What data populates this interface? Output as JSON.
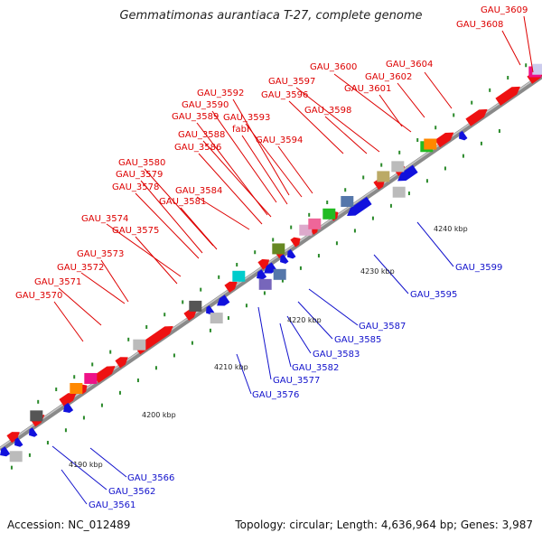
{
  "title": "Gemmatimonas aurantiaca T-27, complete genome",
  "footer": {
    "accession": "Accession: NC_012489",
    "summary": "Topology: circular; Length: 4,636,964 bp; Genes: 3,987"
  },
  "colors": {
    "backbone": "#9a9a9a",
    "forward_cds": "#ee1111",
    "reverse_cds": "#1111dd",
    "forward_label": "#dd0000",
    "reverse_label": "#1111cc",
    "tick": "#2a8a2a"
  },
  "ticks": [
    "4190 kbp",
    "4200 kbp",
    "4210 kbp",
    "4220 kbp",
    "4230 kbp",
    "4240 kbp"
  ],
  "top_labels": [
    "GAU_3609",
    "GAU_3608",
    "GAU_3604",
    "GAU_3600",
    "GAU_3602",
    "GAU_3597",
    "GAU_3601",
    "GAU_3592",
    "GAU_3596",
    "GAU_3590",
    "GAU_3598",
    "GAU_3589",
    "GAU_3593",
    "fabI",
    "GAU_3588",
    "GAU_3594",
    "GAU_3586",
    "GAU_3580",
    "GAU_3579",
    "GAU_3578",
    "GAU_3584",
    "GAU_3581",
    "GAU_3574",
    "GAU_3575",
    "GAU_3573",
    "GAU_3572",
    "GAU_3571",
    "GAU_3570"
  ],
  "bottom_labels": [
    "GAU_3599",
    "GAU_3595",
    "GAU_3587",
    "GAU_3585",
    "GAU_3583",
    "GAU_3582",
    "GAU_3577",
    "GAU_3576",
    "GAU_3566",
    "GAU_3562",
    "GAU_3561"
  ]
}
